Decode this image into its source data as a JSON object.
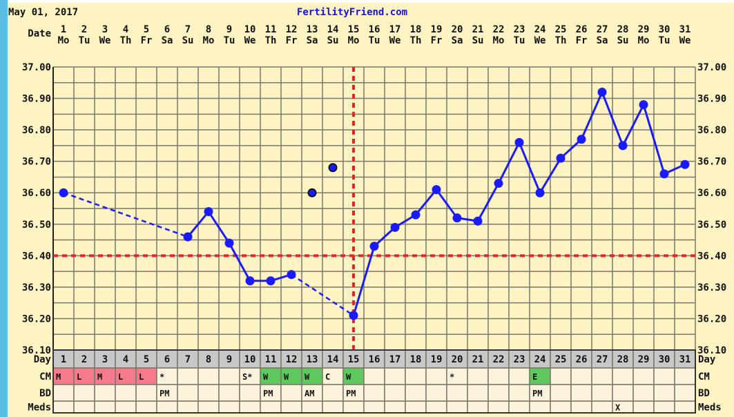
{
  "header": {
    "date": "May 01, 2017",
    "site": "FertilityFriend.com"
  },
  "colors": {
    "line": "#1a1aff",
    "coverline": "#e8242a",
    "grid": "#7a766a",
    "bg": "#fdf3c3",
    "day_row": "#c8c8c8",
    "cm_menses": "#f47a8c",
    "cm_fertile": "#5fc95f",
    "cell": "#fdf3dc"
  },
  "chart_data": {
    "type": "line",
    "title": "FertilityFriend.com",
    "xlabel": "Date",
    "ylabel": "",
    "ylim": [
      36.1,
      37.0
    ],
    "yticks": [
      "37.00",
      "36.90",
      "36.80",
      "36.70",
      "36.60",
      "36.50",
      "36.40",
      "36.30",
      "36.20",
      "36.10"
    ],
    "dates": [
      "1",
      "2",
      "3",
      "4",
      "5",
      "6",
      "7",
      "8",
      "9",
      "10",
      "11",
      "12",
      "13",
      "14",
      "15",
      "16",
      "17",
      "18",
      "19",
      "20",
      "21",
      "22",
      "23",
      "24",
      "25",
      "26",
      "27",
      "28",
      "29",
      "30",
      "31"
    ],
    "weekdays": [
      "Mo",
      "Tu",
      "We",
      "Th",
      "Fr",
      "Sa",
      "Su",
      "Mo",
      "Tu",
      "We",
      "Th",
      "Fr",
      "Sa",
      "Su",
      "Mo",
      "Tu",
      "We",
      "Th",
      "Fr",
      "Sa",
      "Su",
      "Mo",
      "Tu",
      "We",
      "Th",
      "Fr",
      "Sa",
      "Su",
      "Mo",
      "Tu",
      "We"
    ],
    "temps": [
      36.6,
      null,
      null,
      null,
      null,
      null,
      36.46,
      36.54,
      36.44,
      36.32,
      36.32,
      36.34,
      null,
      null,
      36.21,
      36.43,
      36.49,
      36.53,
      36.61,
      36.52,
      36.51,
      36.63,
      36.76,
      36.6,
      36.71,
      36.77,
      36.92,
      36.75,
      36.88,
      36.66,
      36.69
    ],
    "discarded": [
      {
        "day": 13,
        "temp": 36.6
      },
      {
        "day": 14,
        "temp": 36.68
      }
    ],
    "coverline": 36.4,
    "ovulation_day": 15,
    "grid": true
  },
  "rows": {
    "date_label": "Date",
    "day_label": "Day",
    "cm_label": "CM",
    "bd_label": "BD",
    "meds_label": "Meds",
    "days": [
      "1",
      "2",
      "3",
      "4",
      "5",
      "6",
      "7",
      "8",
      "9",
      "10",
      "11",
      "12",
      "13",
      "14",
      "15",
      "16",
      "17",
      "18",
      "19",
      "20",
      "21",
      "22",
      "23",
      "24",
      "25",
      "26",
      "27",
      "28",
      "29",
      "30",
      "31"
    ],
    "cm": [
      "M",
      "L",
      "M",
      "L",
      "L",
      "*",
      "",
      "",
      "",
      "S*",
      "W",
      "W",
      "W",
      "C",
      "W",
      "",
      "",
      "",
      "",
      "*",
      "",
      "",
      "",
      "E",
      "",
      "",
      "",
      "",
      "",
      "",
      ""
    ],
    "cm_color": [
      "menses",
      "menses",
      "menses",
      "menses",
      "menses",
      "",
      "",
      "",
      "",
      "",
      "fertile",
      "fertile",
      "fertile",
      "",
      "fertile",
      "",
      "",
      "",
      "",
      "",
      "",
      "",
      "",
      "fertile",
      "",
      "",
      "",
      "",
      "",
      "",
      ""
    ],
    "bd": [
      "",
      "",
      "",
      "",
      "",
      "PM",
      "",
      "",
      "",
      "",
      "PM",
      "",
      "AM",
      "",
      "PM",
      "",
      "",
      "",
      "",
      "",
      "",
      "",
      "",
      "PM",
      "",
      "",
      "",
      "",
      "",
      "",
      ""
    ],
    "meds": [
      "",
      "",
      "",
      "",
      "",
      "",
      "",
      "",
      "",
      "",
      "",
      "",
      "",
      "",
      "",
      "",
      "",
      "",
      "",
      "",
      "",
      "",
      "",
      "",
      "",
      "",
      "",
      "X",
      "",
      "",
      ""
    ]
  }
}
